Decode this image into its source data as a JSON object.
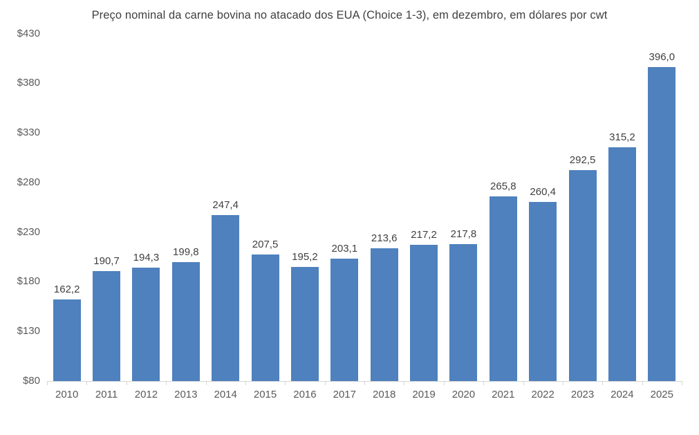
{
  "chart_data": {
    "type": "bar",
    "title": "Preço nominal da carne bovina no atacado dos EUA (Choice 1-3), em dezembro, em dólares por cwt",
    "categories": [
      "2010",
      "2011",
      "2012",
      "2013",
      "2014",
      "2015",
      "2016",
      "2017",
      "2018",
      "2019",
      "2020",
      "2021",
      "2022",
      "2023",
      "2024",
      "2025"
    ],
    "values": [
      162.2,
      190.7,
      194.3,
      199.8,
      247.4,
      207.5,
      195.2,
      203.1,
      213.6,
      217.2,
      217.8,
      265.8,
      260.4,
      292.5,
      315.2,
      396.0
    ],
    "value_labels": [
      "162,2",
      "190,7",
      "194,3",
      "199,8",
      "247,4",
      "207,5",
      "195,2",
      "203,1",
      "213,6",
      "217,2",
      "217,8",
      "265,8",
      "260,4",
      "292,5",
      "315,2",
      "396,0"
    ],
    "xlabel": "",
    "ylabel": "",
    "ylim": [
      80,
      430
    ],
    "y_ticks": [
      {
        "value": 430,
        "label": "$430"
      },
      {
        "value": 380,
        "label": "$380"
      },
      {
        "value": 330,
        "label": "$330"
      },
      {
        "value": 280,
        "label": "$280"
      },
      {
        "value": 230,
        "label": "$230"
      },
      {
        "value": 180,
        "label": "$180"
      },
      {
        "value": 130,
        "label": "$130"
      },
      {
        "value": 80,
        "label": "$80"
      }
    ],
    "grid": false,
    "legend": false,
    "colors": {
      "bar": "#4E81BD",
      "axis_line": "#D6D6D6",
      "title_text": "#404040",
      "data_label_text": "#404040",
      "tick_label_text": "#595959",
      "background": "#FFFFFF"
    }
  }
}
